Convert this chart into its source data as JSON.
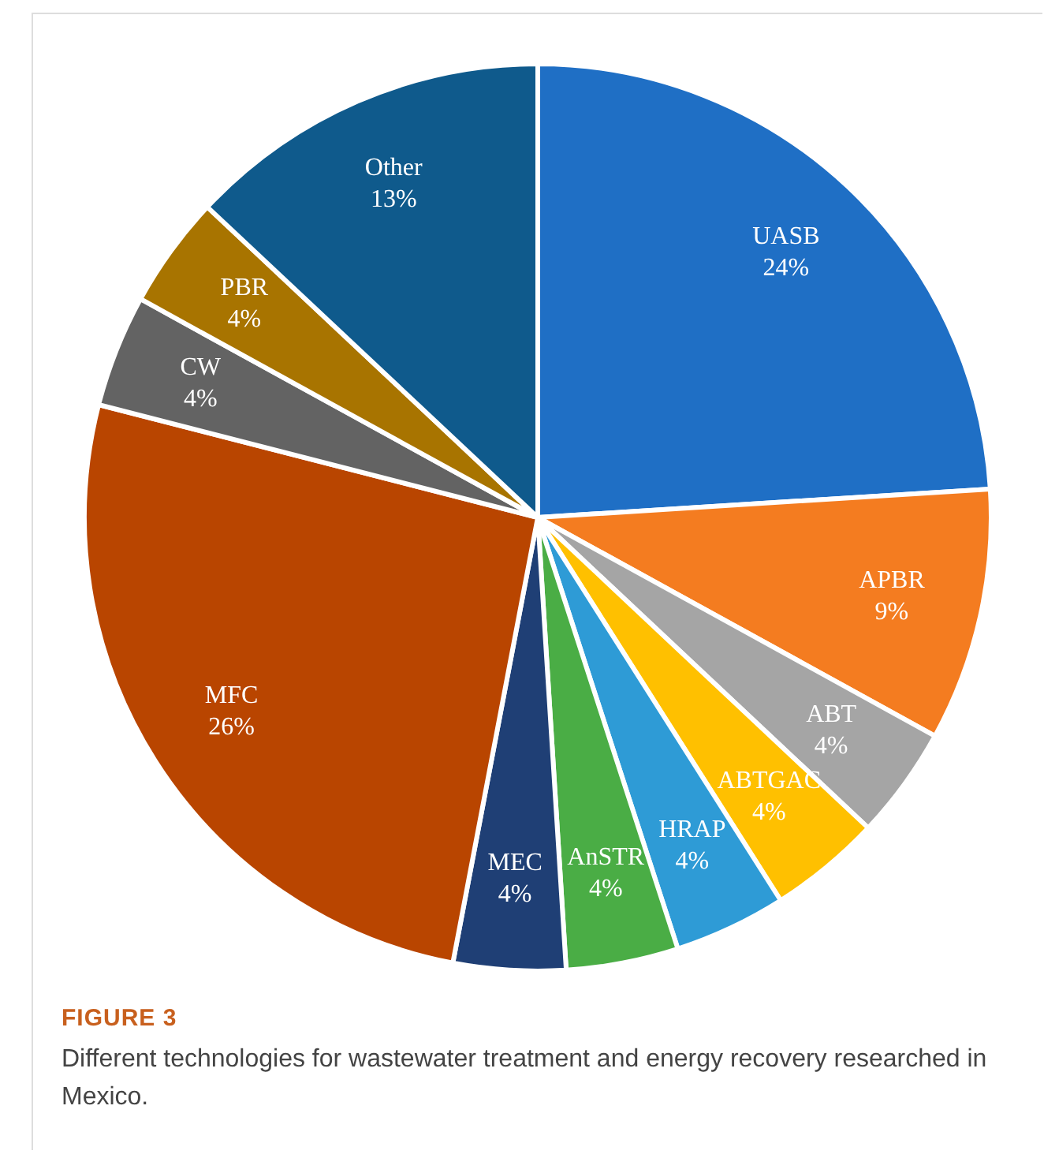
{
  "chart_data": {
    "type": "pie",
    "categories": [
      "UASB",
      "APBR",
      "ABT",
      "ABTGAC",
      "HRAP",
      "AnSTR",
      "MEC",
      "MFC",
      "CW",
      "PBR",
      "Other"
    ],
    "values": [
      24,
      9,
      4,
      4,
      4,
      4,
      4,
      26,
      4,
      4,
      13
    ],
    "value_labels": [
      "24%",
      "9%",
      "4%",
      "4%",
      "4%",
      "4%",
      "4%",
      "26%",
      "4%",
      "4%",
      "13%"
    ],
    "colors": [
      "#1f6fc5",
      "#f47c20",
      "#a5a5a5",
      "#ffc000",
      "#2e9bd6",
      "#4aad45",
      "#1f3f75",
      "#b94500",
      "#636363",
      "#a87400",
      "#0f5a8c"
    ],
    "legend": false,
    "annotations": [
      "FIGURE 3",
      "Different technologies for wastewater treatment and energy recovery researched in Mexico."
    ]
  }
}
